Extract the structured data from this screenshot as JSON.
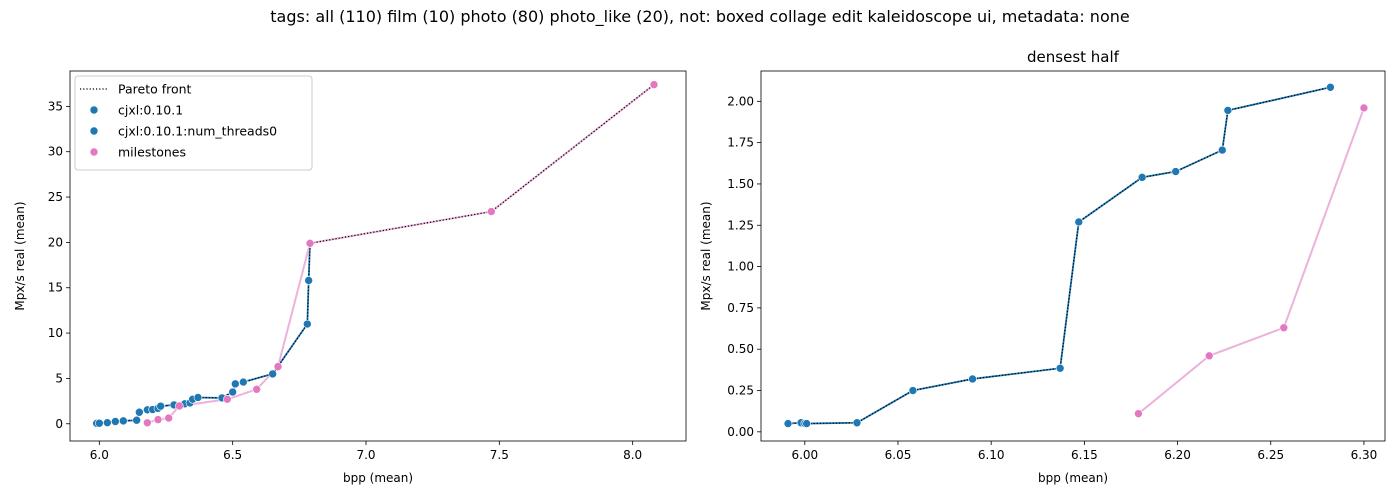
{
  "suptitle": "tags: all (110) film (10) photo (80) photo_like (20), not: boxed collage edit kaleidoscope ui, metadata: none",
  "colors": {
    "blue": "#1f77b4",
    "pink": "#e377c2",
    "pink_line": "#ecb2db",
    "front": "#000000"
  },
  "chart_data": [
    {
      "type": "scatter",
      "title": "",
      "xlabel": "bpp (mean)",
      "ylabel": "Mpx/s real (mean)",
      "xlim": [
        5.89,
        8.2
      ],
      "ylim": [
        -1.9,
        38.9
      ],
      "xticks": [
        "6.0",
        "6.5",
        "7.0",
        "7.5",
        "8.0"
      ],
      "yticks": [
        "0",
        "5",
        "10",
        "15",
        "20",
        "25",
        "30",
        "35"
      ],
      "grid": false,
      "legend": {
        "placement": "top-left",
        "entries": [
          {
            "label": "Pareto front",
            "kind": "dotted-line"
          },
          {
            "label": "cjxl:0.10.1",
            "kind": "marker",
            "color_key": "blue"
          },
          {
            "label": "cjxl:0.10.1:num_threads0",
            "kind": "marker",
            "color_key": "blue"
          },
          {
            "label": "milestones",
            "kind": "marker",
            "color_key": "pink"
          }
        ]
      },
      "series": [
        {
          "name": "cjxl:0.10.1",
          "color_key": "blue",
          "connected": true,
          "points": [
            [
              5.99,
              0.05
            ],
            [
              6.0,
              0.06
            ],
            [
              6.03,
              0.12
            ],
            [
              6.06,
              0.25
            ],
            [
              6.09,
              0.32
            ],
            [
              6.14,
              0.39
            ],
            [
              6.15,
              1.27
            ],
            [
              6.18,
              1.54
            ],
            [
              6.2,
              1.57
            ],
            [
              6.22,
              1.7
            ],
            [
              6.23,
              1.94
            ],
            [
              6.28,
              2.08
            ],
            [
              6.32,
              2.2
            ],
            [
              6.34,
              2.3
            ],
            [
              6.35,
              2.7
            ],
            [
              6.37,
              2.9
            ],
            [
              6.46,
              2.85
            ],
            [
              6.5,
              3.5
            ],
            [
              6.51,
              4.4
            ],
            [
              6.54,
              4.6
            ],
            [
              6.65,
              5.5
            ],
            [
              6.78,
              11.0
            ],
            [
              6.785,
              15.8
            ],
            [
              6.79,
              19.9
            ]
          ]
        },
        {
          "name": "cjxl:0.10.1:num_threads0",
          "color_key": "blue",
          "connected": false,
          "points": []
        },
        {
          "name": "milestones",
          "color_key": "pink",
          "connected": true,
          "points": [
            [
              6.18,
              0.11
            ],
            [
              6.22,
              0.46
            ],
            [
              6.26,
              0.63
            ],
            [
              6.3,
              1.96
            ],
            [
              6.48,
              2.7
            ],
            [
              6.59,
              3.8
            ],
            [
              6.67,
              6.3
            ],
            [
              6.79,
              19.9
            ],
            [
              7.47,
              23.4
            ],
            [
              8.08,
              37.4
            ]
          ]
        }
      ],
      "pareto_front": [
        [
          5.99,
          0.05
        ],
        [
          6.0,
          0.06
        ],
        [
          6.03,
          0.12
        ],
        [
          6.06,
          0.25
        ],
        [
          6.09,
          0.32
        ],
        [
          6.14,
          0.39
        ],
        [
          6.15,
          1.27
        ],
        [
          6.18,
          1.54
        ],
        [
          6.2,
          1.57
        ],
        [
          6.22,
          1.7
        ],
        [
          6.23,
          1.94
        ],
        [
          6.28,
          2.08
        ],
        [
          6.32,
          2.2
        ],
        [
          6.34,
          2.3
        ],
        [
          6.35,
          2.7
        ],
        [
          6.37,
          2.9
        ],
        [
          6.46,
          2.85
        ],
        [
          6.5,
          3.5
        ],
        [
          6.51,
          4.4
        ],
        [
          6.54,
          4.6
        ],
        [
          6.65,
          5.5
        ],
        [
          6.67,
          6.3
        ],
        [
          6.78,
          11.0
        ],
        [
          6.785,
          15.8
        ],
        [
          6.79,
          19.9
        ],
        [
          7.47,
          23.4
        ],
        [
          8.08,
          37.4
        ]
      ]
    },
    {
      "type": "scatter",
      "title": "densest half",
      "xlabel": "bpp (mean)",
      "ylabel": "Mpx/s real (mean)",
      "xlim": [
        5.9765,
        6.3113
      ],
      "ylim": [
        -0.0555,
        2.1835
      ],
      "xticks": [
        "6.00",
        "6.05",
        "6.10",
        "6.15",
        "6.20",
        "6.25",
        "6.30"
      ],
      "yticks": [
        "0.00",
        "0.25",
        "0.50",
        "0.75",
        "1.00",
        "1.25",
        "1.50",
        "1.75",
        "2.00"
      ],
      "grid": false,
      "series": [
        {
          "name": "cjxl:0.10.1",
          "color_key": "blue",
          "connected": true,
          "points": [
            [
              5.991,
              0.05
            ],
            [
              5.998,
              0.055
            ],
            [
              6.0,
              0.05
            ],
            [
              6.001,
              0.05
            ],
            [
              6.028,
              0.055
            ],
            [
              6.058,
              0.25
            ],
            [
              6.09,
              0.32
            ],
            [
              6.137,
              0.385
            ],
            [
              6.147,
              1.27
            ],
            [
              6.181,
              1.54
            ],
            [
              6.199,
              1.575
            ],
            [
              6.224,
              1.705
            ],
            [
              6.227,
              1.945
            ],
            [
              6.282,
              2.085
            ]
          ]
        },
        {
          "name": "milestones",
          "color_key": "pink",
          "connected": true,
          "points": [
            [
              6.179,
              0.11
            ],
            [
              6.217,
              0.46
            ],
            [
              6.257,
              0.63
            ],
            [
              6.3,
              1.96
            ]
          ]
        }
      ],
      "pareto_front": [
        [
          5.991,
          0.05
        ],
        [
          5.998,
          0.055
        ],
        [
          6.0,
          0.05
        ],
        [
          6.001,
          0.05
        ],
        [
          6.028,
          0.055
        ],
        [
          6.058,
          0.25
        ],
        [
          6.09,
          0.32
        ],
        [
          6.137,
          0.385
        ],
        [
          6.147,
          1.27
        ],
        [
          6.181,
          1.54
        ],
        [
          6.199,
          1.575
        ],
        [
          6.224,
          1.705
        ],
        [
          6.227,
          1.945
        ],
        [
          6.282,
          2.085
        ]
      ]
    }
  ]
}
